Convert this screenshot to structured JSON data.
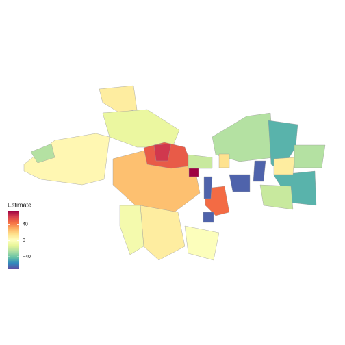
{
  "chart_data": {
    "type": "choropleth",
    "legend_title": "Estimate",
    "colorbar_lim": [
      -70,
      73
    ],
    "colorbar_ticks": [
      {
        "value": -40,
        "label": "−40"
      },
      0,
      40
    ],
    "colors": [
      "#5e4fa2",
      "#3288bd",
      "#66c2a5",
      "#abdda4",
      "#e6f598",
      "#ffffbf",
      "#fee08b",
      "#fdae61",
      "#f46d43",
      "#d53e4f",
      "#9e0142"
    ],
    "values": [
      5,
      10,
      -10,
      25,
      50,
      60,
      73,
      10,
      -5,
      0,
      45,
      -65,
      -65,
      -25,
      -45,
      -65,
      -65,
      -45,
      -20,
      10,
      -25,
      -20,
      15,
      -25
    ]
  }
}
